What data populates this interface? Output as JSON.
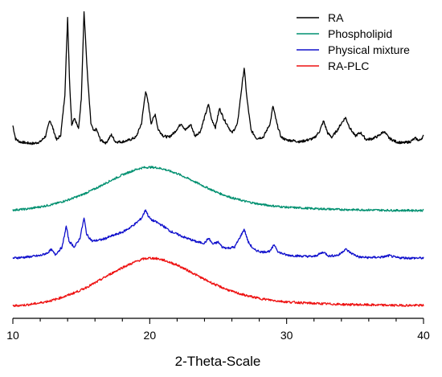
{
  "chart_data": {
    "type": "line",
    "title": "",
    "xlabel": "2-Theta-Scale",
    "ylabel": "",
    "xlim": [
      10,
      40
    ],
    "xticks": [
      10,
      20,
      30,
      40
    ],
    "yticks_shown": false,
    "legend_position": "top-right",
    "series": [
      {
        "name": "RA",
        "color": "#000000",
        "points": [
          [
            10,
            0.58
          ],
          [
            10.2,
            0.35
          ],
          [
            10.5,
            0.3
          ],
          [
            11,
            0.28
          ],
          [
            11.5,
            0.27
          ],
          [
            12,
            0.3
          ],
          [
            12.4,
            0.4
          ],
          [
            12.7,
            0.68
          ],
          [
            12.9,
            0.55
          ],
          [
            13.2,
            0.33
          ],
          [
            13.5,
            0.42
          ],
          [
            13.8,
            1.12
          ],
          [
            14.0,
            2.45
          ],
          [
            14.15,
            1.3
          ],
          [
            14.3,
            0.6
          ],
          [
            14.5,
            0.72
          ],
          [
            14.8,
            0.52
          ],
          [
            15.0,
            1.05
          ],
          [
            15.2,
            2.55
          ],
          [
            15.45,
            1.45
          ],
          [
            15.7,
            0.62
          ],
          [
            15.9,
            0.48
          ],
          [
            16.1,
            0.52
          ],
          [
            16.4,
            0.33
          ],
          [
            16.8,
            0.28
          ],
          [
            17.2,
            0.42
          ],
          [
            17.5,
            0.3
          ],
          [
            18,
            0.3
          ],
          [
            18.5,
            0.33
          ],
          [
            19,
            0.38
          ],
          [
            19.4,
            0.62
          ],
          [
            19.7,
            1.18
          ],
          [
            19.9,
            0.95
          ],
          [
            20.1,
            0.62
          ],
          [
            20.4,
            0.78
          ],
          [
            20.6,
            0.52
          ],
          [
            21,
            0.4
          ],
          [
            21.4,
            0.38
          ],
          [
            21.8,
            0.46
          ],
          [
            22.3,
            0.62
          ],
          [
            22.6,
            0.5
          ],
          [
            23,
            0.6
          ],
          [
            23.3,
            0.4
          ],
          [
            23.7,
            0.48
          ],
          [
            24.0,
            0.72
          ],
          [
            24.3,
            0.95
          ],
          [
            24.5,
            0.7
          ],
          [
            24.8,
            0.55
          ],
          [
            25.1,
            0.88
          ],
          [
            25.4,
            0.7
          ],
          [
            25.7,
            0.58
          ],
          [
            26.0,
            0.45
          ],
          [
            26.4,
            0.6
          ],
          [
            26.7,
            1.2
          ],
          [
            26.9,
            1.58
          ],
          [
            27.1,
            1.05
          ],
          [
            27.4,
            0.5
          ],
          [
            27.8,
            0.36
          ],
          [
            28.3,
            0.38
          ],
          [
            28.8,
            0.62
          ],
          [
            29.0,
            0.92
          ],
          [
            29.3,
            0.6
          ],
          [
            29.6,
            0.38
          ],
          [
            30,
            0.33
          ],
          [
            30.5,
            0.32
          ],
          [
            31,
            0.3
          ],
          [
            31.5,
            0.33
          ],
          [
            32,
            0.36
          ],
          [
            32.4,
            0.48
          ],
          [
            32.7,
            0.66
          ],
          [
            33,
            0.45
          ],
          [
            33.3,
            0.38
          ],
          [
            33.7,
            0.5
          ],
          [
            34.0,
            0.62
          ],
          [
            34.3,
            0.72
          ],
          [
            34.6,
            0.55
          ],
          [
            35.0,
            0.4
          ],
          [
            35.4,
            0.46
          ],
          [
            35.8,
            0.34
          ],
          [
            36.2,
            0.35
          ],
          [
            36.7,
            0.4
          ],
          [
            37.1,
            0.48
          ],
          [
            37.5,
            0.36
          ],
          [
            38,
            0.3
          ],
          [
            38.5,
            0.28
          ],
          [
            39,
            0.3
          ],
          [
            39.4,
            0.36
          ],
          [
            39.7,
            0.32
          ],
          [
            40,
            0.4
          ]
        ]
      },
      {
        "name": "Phospholipid",
        "color": "#009070",
        "points": [
          [
            10,
            0.05
          ],
          [
            11,
            0.07
          ],
          [
            12,
            0.12
          ],
          [
            13,
            0.18
          ],
          [
            14,
            0.27
          ],
          [
            15,
            0.38
          ],
          [
            16,
            0.52
          ],
          [
            17,
            0.68
          ],
          [
            18,
            0.83
          ],
          [
            19,
            0.95
          ],
          [
            19.5,
            0.99
          ],
          [
            20,
            1.0
          ],
          [
            20.5,
            0.99
          ],
          [
            21,
            0.96
          ],
          [
            22,
            0.86
          ],
          [
            23,
            0.72
          ],
          [
            24,
            0.57
          ],
          [
            25,
            0.43
          ],
          [
            26,
            0.32
          ],
          [
            27,
            0.24
          ],
          [
            28,
            0.18
          ],
          [
            29,
            0.14
          ],
          [
            30,
            0.11
          ],
          [
            32,
            0.08
          ],
          [
            34,
            0.06
          ],
          [
            36,
            0.05
          ],
          [
            38,
            0.04
          ],
          [
            40,
            0.04
          ]
        ]
      },
      {
        "name": "Physical mixture",
        "color": "#1010cc",
        "points": [
          [
            10,
            0.08
          ],
          [
            11,
            0.1
          ],
          [
            12,
            0.13
          ],
          [
            12.5,
            0.18
          ],
          [
            12.8,
            0.25
          ],
          [
            13.1,
            0.15
          ],
          [
            13.6,
            0.3
          ],
          [
            13.9,
            0.72
          ],
          [
            14.1,
            0.42
          ],
          [
            14.5,
            0.3
          ],
          [
            14.9,
            0.48
          ],
          [
            15.2,
            0.88
          ],
          [
            15.4,
            0.55
          ],
          [
            15.8,
            0.42
          ],
          [
            16.5,
            0.45
          ],
          [
            17,
            0.5
          ],
          [
            17.5,
            0.55
          ],
          [
            18,
            0.6
          ],
          [
            18.5,
            0.68
          ],
          [
            19,
            0.78
          ],
          [
            19.4,
            0.88
          ],
          [
            19.7,
            1.05
          ],
          [
            19.9,
            0.92
          ],
          [
            20.1,
            0.85
          ],
          [
            20.5,
            0.8
          ],
          [
            21,
            0.72
          ],
          [
            21.5,
            0.62
          ],
          [
            22,
            0.56
          ],
          [
            22.5,
            0.5
          ],
          [
            23,
            0.45
          ],
          [
            23.5,
            0.4
          ],
          [
            24,
            0.38
          ],
          [
            24.3,
            0.48
          ],
          [
            24.6,
            0.36
          ],
          [
            25,
            0.4
          ],
          [
            25.3,
            0.3
          ],
          [
            25.7,
            0.28
          ],
          [
            26.2,
            0.3
          ],
          [
            26.6,
            0.5
          ],
          [
            26.9,
            0.66
          ],
          [
            27.2,
            0.4
          ],
          [
            27.6,
            0.25
          ],
          [
            28.2,
            0.2
          ],
          [
            28.8,
            0.22
          ],
          [
            29.1,
            0.35
          ],
          [
            29.4,
            0.2
          ],
          [
            30,
            0.14
          ],
          [
            31,
            0.12
          ],
          [
            32,
            0.11
          ],
          [
            32.7,
            0.2
          ],
          [
            33.1,
            0.12
          ],
          [
            33.8,
            0.14
          ],
          [
            34.3,
            0.26
          ],
          [
            34.7,
            0.18
          ],
          [
            35.3,
            0.1
          ],
          [
            36,
            0.09
          ],
          [
            37,
            0.1
          ],
          [
            37.5,
            0.13
          ],
          [
            38,
            0.09
          ],
          [
            39,
            0.08
          ],
          [
            40,
            0.08
          ]
        ]
      },
      {
        "name": "RA-PLC",
        "color": "#ee1111",
        "points": [
          [
            10,
            0.04
          ],
          [
            11,
            0.06
          ],
          [
            12,
            0.1
          ],
          [
            13,
            0.16
          ],
          [
            14,
            0.25
          ],
          [
            15,
            0.36
          ],
          [
            16,
            0.5
          ],
          [
            17,
            0.66
          ],
          [
            18,
            0.81
          ],
          [
            19,
            0.93
          ],
          [
            19.5,
            0.98
          ],
          [
            20,
            1.0
          ],
          [
            20.5,
            0.99
          ],
          [
            21,
            0.96
          ],
          [
            22,
            0.86
          ],
          [
            23,
            0.72
          ],
          [
            24,
            0.57
          ],
          [
            25,
            0.44
          ],
          [
            26,
            0.33
          ],
          [
            27,
            0.25
          ],
          [
            28,
            0.19
          ],
          [
            29,
            0.15
          ],
          [
            30,
            0.12
          ],
          [
            32,
            0.09
          ],
          [
            34,
            0.07
          ],
          [
            36,
            0.06
          ],
          [
            38,
            0.05
          ],
          [
            40,
            0.05
          ]
        ]
      }
    ]
  }
}
